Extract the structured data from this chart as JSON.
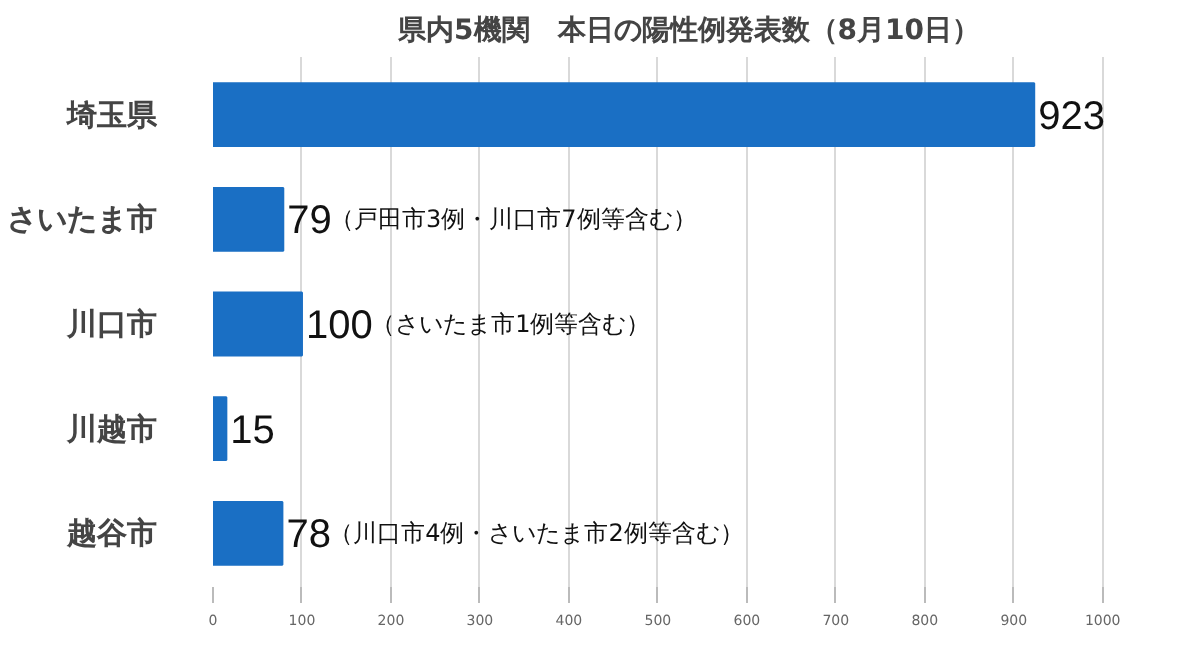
{
  "chart_data": {
    "type": "bar",
    "orientation": "horizontal",
    "title": "県内5機関　本日の陽性例発表数（8月10日）",
    "categories": [
      "埼玉県",
      "さいたま市",
      "川口市",
      "川越市",
      "越谷市"
    ],
    "values": [
      923,
      79,
      100,
      15,
      78
    ],
    "color": "#1a6fc4",
    "xlim": [
      0,
      1000
    ],
    "xticks": [
      0,
      100,
      200,
      300,
      400,
      500,
      600,
      700,
      800,
      900,
      1000
    ],
    "grid": "x",
    "data_labels": true,
    "annotations": [
      {
        "text": "（戸田市3例・川口市7例等含む）",
        "x": 79,
        "y": "さいたま市"
      },
      {
        "text": "（さいたま市1例等含む）",
        "x": 100,
        "y": "川口市"
      },
      {
        "text": "（川口市4例・さいたま市2例等含む）",
        "x": 78,
        "y": "越谷市"
      }
    ]
  }
}
